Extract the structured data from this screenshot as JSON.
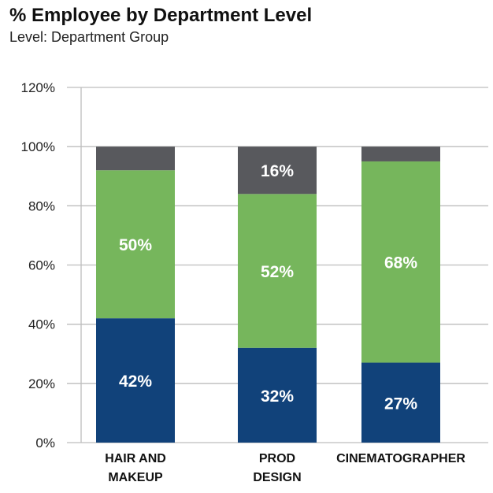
{
  "chart_data": {
    "type": "bar",
    "stacked": true,
    "title": "% Employee by Department Level",
    "subtitle": "Level: Department Group",
    "categories": [
      [
        "HAIR AND",
        "MAKEUP"
      ],
      [
        "PROD",
        "DESIGN"
      ],
      [
        "CINEMATOGRAPHER"
      ]
    ],
    "series": [
      {
        "color": "#11427a",
        "values": [
          42,
          32,
          27
        ],
        "labels": [
          "42%",
          "32%",
          "27%"
        ]
      },
      {
        "color": "#76b65c",
        "values": [
          50,
          52,
          68
        ],
        "labels": [
          "50%",
          "52%",
          "68%"
        ]
      },
      {
        "color": "#58595d",
        "values": [
          8,
          16,
          5
        ],
        "labels": [
          "",
          "16%",
          ""
        ]
      }
    ],
    "ylim": [
      0,
      120
    ],
    "yticks": [
      0,
      20,
      40,
      60,
      80,
      100,
      120
    ],
    "ytick_labels": [
      "0%",
      "20%",
      "40%",
      "60%",
      "80%",
      "100%",
      "120%"
    ],
    "grid": true,
    "legend": "none"
  }
}
